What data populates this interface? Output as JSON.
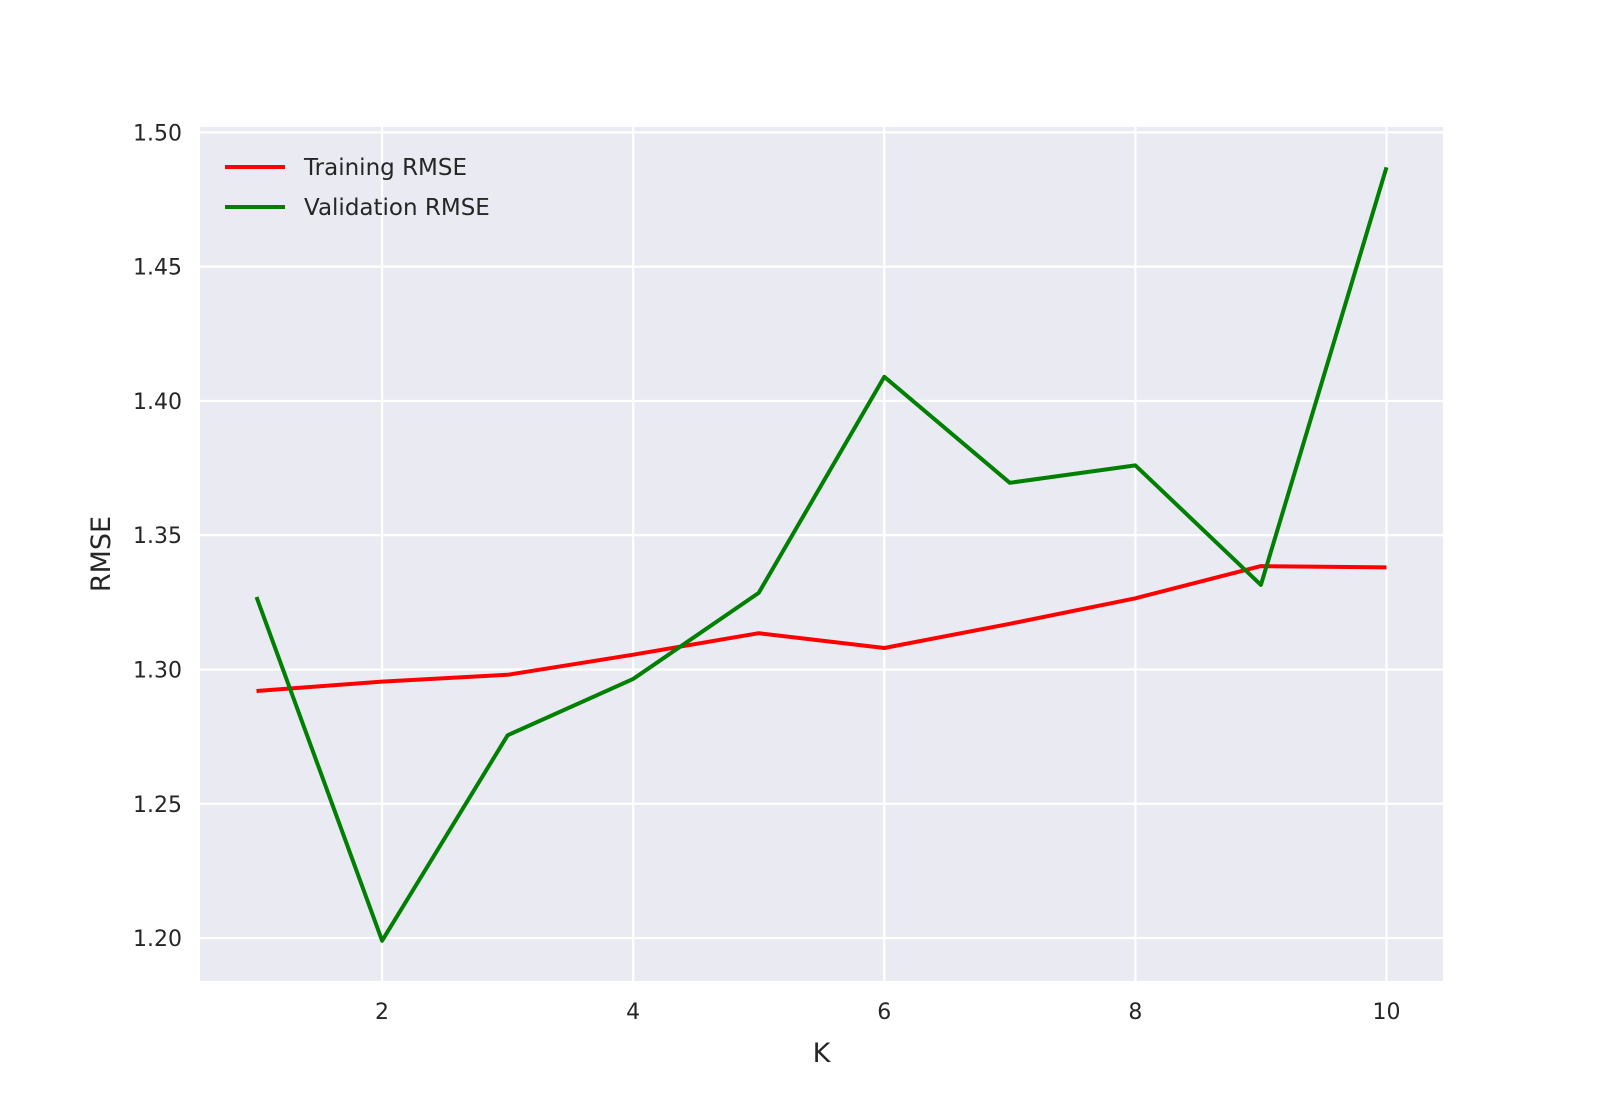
{
  "chart_data": {
    "type": "line",
    "xlabel": "K",
    "ylabel": "RMSE",
    "xlim": [
      0.55,
      10.45
    ],
    "ylim": [
      1.184,
      1.502
    ],
    "xticks": [
      2,
      4,
      6,
      8,
      10
    ],
    "yticks": [
      1.2,
      1.25,
      1.3,
      1.35,
      1.4,
      1.45,
      1.5
    ],
    "grid": true,
    "background": "#EAEAF2",
    "legend_position": "top-left",
    "x": [
      1,
      2,
      3,
      4,
      5,
      6,
      7,
      8,
      9,
      10
    ],
    "series": [
      {
        "name": "Training RMSE",
        "color": "#FF0000",
        "values": [
          1.292,
          1.2955,
          1.298,
          1.3055,
          1.3135,
          1.308,
          1.317,
          1.3265,
          1.3385,
          1.338
        ]
      },
      {
        "name": "Validation RMSE",
        "color": "#008000",
        "values": [
          1.327,
          1.199,
          1.2755,
          1.2965,
          1.3285,
          1.409,
          1.3695,
          1.376,
          1.3315,
          1.487
        ]
      }
    ]
  }
}
